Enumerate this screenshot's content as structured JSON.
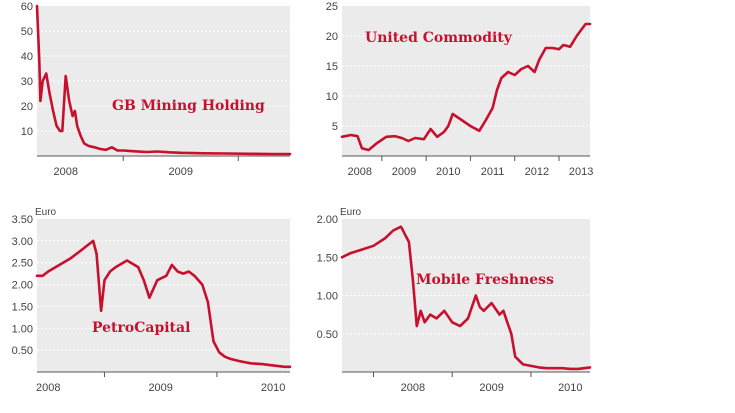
{
  "colors": {
    "line": "#c8102e",
    "panel": "#ebebeb",
    "grid": "#ffffff",
    "axis": "#555555"
  },
  "chart_data": [
    {
      "type": "line",
      "title": "GB Mining Holding",
      "unit": "",
      "grid": "dashed horizontal",
      "ylim": [
        0,
        60
      ],
      "xlim": [
        2007.75,
        2009.95
      ],
      "y_ticks": [
        "60",
        "50",
        "40",
        "30",
        "20",
        "10"
      ],
      "x_ticks": [
        "2008",
        "2009"
      ],
      "x_tick_values": [
        2008,
        2009
      ],
      "series": [
        {
          "x": [
            2007.75,
            2007.77,
            2007.78,
            2007.8,
            2007.83,
            2007.86,
            2007.89,
            2007.92,
            2007.95,
            2007.97,
            2008.0,
            2008.03,
            2008.06,
            2008.08,
            2008.1,
            2008.13,
            2008.16,
            2008.2,
            2008.25,
            2008.3,
            2008.35,
            2008.4,
            2008.45,
            2008.5,
            2008.6,
            2008.7,
            2008.8,
            2008.9,
            2009.0,
            2009.2,
            2009.4,
            2009.6,
            2009.8,
            2009.95
          ],
          "y": [
            60,
            38,
            22,
            30,
            33,
            25,
            18,
            12,
            10,
            10,
            32,
            22,
            16,
            18,
            12,
            8,
            5,
            4,
            3.5,
            2.8,
            2.5,
            3.5,
            2.2,
            2.2,
            1.9,
            1.6,
            1.8,
            1.5,
            1.3,
            1.1,
            1.0,
            0.9,
            0.8,
            0.8
          ]
        }
      ]
    },
    {
      "type": "line",
      "title": "United Commodity",
      "unit": "",
      "grid": "dashed horizontal",
      "ylim": [
        0,
        25
      ],
      "xlim": [
        2007.6,
        2013.2
      ],
      "y_ticks": [
        "25",
        "20",
        "15",
        "10",
        "5"
      ],
      "x_ticks": [
        "2008",
        "2009",
        "2010",
        "2011",
        "2012",
        "2013"
      ],
      "x_tick_values": [
        2008,
        2009,
        2010,
        2011,
        2012,
        2013
      ],
      "series": [
        {
          "x": [
            2007.6,
            2007.8,
            2007.95,
            2008.05,
            2008.2,
            2008.4,
            2008.6,
            2008.8,
            2008.95,
            2009.1,
            2009.25,
            2009.45,
            2009.6,
            2009.75,
            2009.9,
            2010.0,
            2010.1,
            2010.3,
            2010.5,
            2010.7,
            2010.85,
            2011.0,
            2011.1,
            2011.2,
            2011.35,
            2011.5,
            2011.65,
            2011.8,
            2011.95,
            2012.05,
            2012.2,
            2012.35,
            2012.5,
            2012.6,
            2012.75,
            2012.9,
            2013.0,
            2013.1,
            2013.2
          ],
          "y": [
            3.2,
            3.5,
            3.3,
            1.3,
            1.0,
            2.2,
            3.2,
            3.3,
            3.0,
            2.5,
            3.0,
            2.8,
            4.5,
            3.2,
            4.0,
            5.0,
            7.0,
            6.0,
            5.0,
            4.2,
            6.0,
            8.0,
            11.0,
            13.0,
            14.0,
            13.5,
            14.5,
            15.0,
            14.0,
            16.0,
            18.0,
            18.0,
            17.8,
            18.5,
            18.2,
            20.0,
            21.0,
            22.0,
            22.0
          ]
        }
      ]
    },
    {
      "type": "line",
      "title": "PetroCapital",
      "unit": "Euro",
      "grid": "dashed horizontal",
      "ylim": [
        0,
        3.5
      ],
      "xlim": [
        2007.9,
        2010.15
      ],
      "y_ticks": [
        "3.50",
        "3.00",
        "2.50",
        "2.00",
        "1.50",
        "1.00",
        "0.50"
      ],
      "x_ticks": [
        "2008",
        "2009",
        "2010"
      ],
      "x_tick_values": [
        2008,
        2009,
        2010
      ],
      "series": [
        {
          "x": [
            2007.9,
            2007.95,
            2008.0,
            2008.1,
            2008.2,
            2008.3,
            2008.4,
            2008.43,
            2008.47,
            2008.5,
            2008.55,
            2008.6,
            2008.7,
            2008.8,
            2008.85,
            2008.9,
            2008.97,
            2009.05,
            2009.1,
            2009.15,
            2009.2,
            2009.25,
            2009.3,
            2009.37,
            2009.42,
            2009.47,
            2009.52,
            2009.57,
            2009.62,
            2009.7,
            2009.8,
            2009.9,
            2010.0,
            2010.1,
            2010.15
          ],
          "y": [
            2.2,
            2.2,
            2.3,
            2.45,
            2.6,
            2.8,
            3.0,
            2.7,
            1.4,
            2.1,
            2.3,
            2.4,
            2.55,
            2.4,
            2.1,
            1.7,
            2.1,
            2.2,
            2.45,
            2.3,
            2.25,
            2.3,
            2.2,
            2.0,
            1.6,
            0.7,
            0.45,
            0.35,
            0.3,
            0.25,
            0.2,
            0.18,
            0.15,
            0.12,
            0.12
          ]
        }
      ]
    },
    {
      "type": "line",
      "title": "Mobile Freshness",
      "unit": "Euro",
      "grid": "dashed horizontal",
      "ylim": [
        0,
        2.0
      ],
      "xlim": [
        2007.1,
        2010.25
      ],
      "y_ticks": [
        "2.00",
        "1.50",
        "1.00",
        "0.50"
      ],
      "x_ticks": [
        "2008",
        "2009",
        "2010"
      ],
      "x_tick_values": [
        2008,
        2009,
        2010
      ],
      "series": [
        {
          "x": [
            2007.1,
            2007.2,
            2007.35,
            2007.5,
            2007.65,
            2007.75,
            2007.85,
            2007.95,
            2008.0,
            2008.05,
            2008.1,
            2008.15,
            2008.22,
            2008.3,
            2008.4,
            2008.5,
            2008.6,
            2008.7,
            2008.8,
            2008.85,
            2008.9,
            2009.0,
            2009.1,
            2009.15,
            2009.2,
            2009.25,
            2009.3,
            2009.4,
            2009.5,
            2009.6,
            2009.7,
            2009.8,
            2009.9,
            2010.0,
            2010.1,
            2010.25
          ],
          "y": [
            1.5,
            1.55,
            1.6,
            1.65,
            1.75,
            1.85,
            1.9,
            1.7,
            1.2,
            0.6,
            0.8,
            0.65,
            0.75,
            0.7,
            0.8,
            0.65,
            0.6,
            0.7,
            1.0,
            0.85,
            0.8,
            0.9,
            0.75,
            0.8,
            0.65,
            0.5,
            0.2,
            0.1,
            0.08,
            0.06,
            0.05,
            0.05,
            0.05,
            0.04,
            0.04,
            0.06
          ]
        }
      ]
    }
  ]
}
